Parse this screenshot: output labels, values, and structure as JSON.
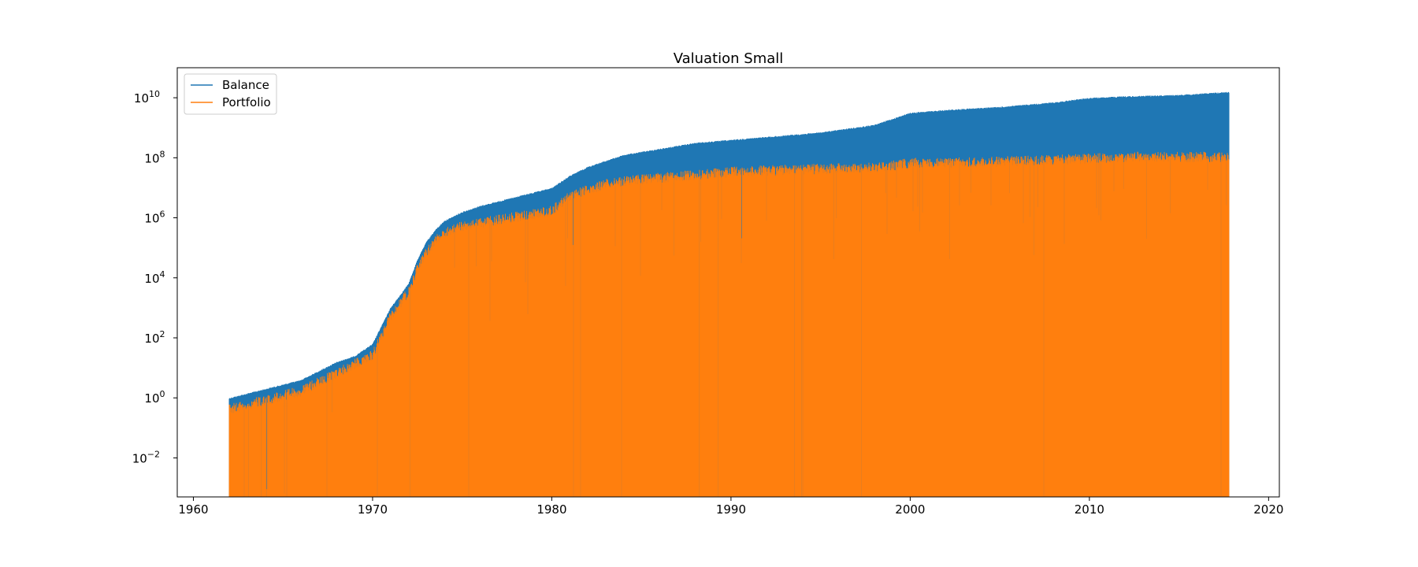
{
  "chart_data": {
    "type": "area",
    "title": "Valuation Small",
    "xlabel": "",
    "ylabel": "",
    "xlim": [
      1959.1,
      2020.6
    ],
    "ylim_log10": [
      -3.3,
      11.0
    ],
    "yscale": "log",
    "grid": false,
    "legend_position": "top-left",
    "x_ticks": [
      1960,
      1970,
      1980,
      1990,
      2000,
      2010,
      2020
    ],
    "y_ticks": [
      {
        "base": "10",
        "exp": "−2",
        "log10": -2
      },
      {
        "base": "10",
        "exp": "0",
        "log10": 0
      },
      {
        "base": "10",
        "exp": "2",
        "log10": 2
      },
      {
        "base": "10",
        "exp": "4",
        "log10": 4
      },
      {
        "base": "10",
        "exp": "6",
        "log10": 6
      },
      {
        "base": "10",
        "exp": "8",
        "log10": 8
      },
      {
        "base": "10",
        "exp": "10",
        "log10": 10
      }
    ],
    "series": [
      {
        "name": "Balance",
        "color": "#1f77b4",
        "x": [
          1962.0,
          1964.0,
          1966.0,
          1968.0,
          1969.0,
          1970.0,
          1971.0,
          1972.0,
          1972.5,
          1973.0,
          1973.5,
          1974.0,
          1975.0,
          1976.0,
          1978.0,
          1980.0,
          1981.0,
          1982.0,
          1983.0,
          1984.0,
          1986.0,
          1988.0,
          1990.0,
          1992.0,
          1995.0,
          1998.0,
          1999.0,
          2000.0,
          2002.0,
          2005.0,
          2008.0,
          2010.0,
          2012.0,
          2015.0,
          2017.8
        ],
        "log10_values": [
          0.0,
          0.3,
          0.6,
          1.2,
          1.4,
          1.8,
          3.0,
          3.8,
          4.6,
          5.2,
          5.6,
          5.9,
          6.2,
          6.4,
          6.7,
          7.0,
          7.4,
          7.7,
          7.9,
          8.1,
          8.3,
          8.5,
          8.6,
          8.7,
          8.85,
          9.1,
          9.3,
          9.5,
          9.6,
          9.7,
          9.85,
          10.0,
          10.05,
          10.1,
          10.2
        ]
      },
      {
        "name": "Portfolio",
        "color": "#ff7f0e",
        "x": [
          1962.0,
          1964.0,
          1966.0,
          1968.0,
          1969.0,
          1970.0,
          1971.0,
          1972.0,
          1972.5,
          1973.0,
          1973.5,
          1974.0,
          1975.0,
          1976.0,
          1978.0,
          1980.0,
          1981.0,
          1982.0,
          1983.0,
          1984.0,
          1986.0,
          1988.0,
          1990.0,
          1992.0,
          1995.0,
          1998.0,
          1999.0,
          2000.0,
          2002.0,
          2005.0,
          2008.0,
          2010.0,
          2012.0,
          2015.0,
          2017.8
        ],
        "log10_values": [
          -0.2,
          0.1,
          0.4,
          1.0,
          1.3,
          1.6,
          2.9,
          3.7,
          4.5,
          5.0,
          5.4,
          5.7,
          5.9,
          6.0,
          6.2,
          6.4,
          6.9,
          7.1,
          7.3,
          7.4,
          7.5,
          7.6,
          7.7,
          7.75,
          7.8,
          7.85,
          7.9,
          8.0,
          8.0,
          8.05,
          8.1,
          8.15,
          8.2,
          8.2,
          8.2
        ]
      }
    ]
  }
}
